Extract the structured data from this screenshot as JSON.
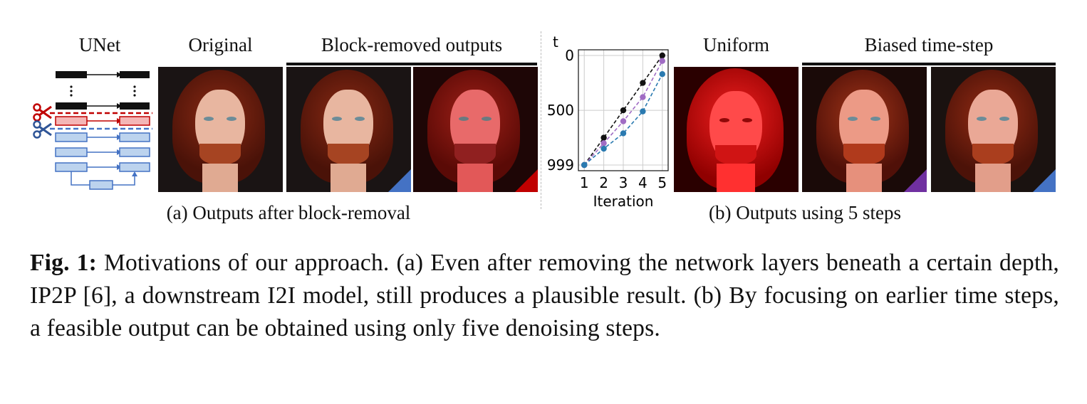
{
  "panel_a": {
    "unet_label": "UNet",
    "original_label": "Original",
    "block_removed_label": "Block-removed outputs",
    "subcaption": "(a) Outputs after block-removal"
  },
  "panel_b": {
    "uniform_label": "Uniform",
    "biased_label": "Biased time-step",
    "subcaption": "(b) Outputs using 5 steps"
  },
  "colors": {
    "black_series": "#111111",
    "purple_series": "#a06cc4",
    "blue_series": "#2a7ab0",
    "corner_blue": "#4472c4",
    "corner_red": "#c00000",
    "corner_purple": "#7030a0",
    "unet_red": "#c00000",
    "unet_blue": "#4472c4"
  },
  "icons": [
    "scissors-icon-red",
    "scissors-icon-blue"
  ],
  "chart_data": {
    "type": "line",
    "ylabel": "t",
    "xlabel": "Iteration",
    "x": [
      1,
      2,
      3,
      4,
      5
    ],
    "x_tick_labels": [
      "1",
      "2",
      "3",
      "4",
      "5"
    ],
    "y_tick_labels": [
      "0",
      "500",
      "999"
    ],
    "ylim": [
      999,
      0
    ],
    "grid": true,
    "series": [
      {
        "color": "black",
        "values": [
          999,
          750,
          500,
          250,
          0
        ]
      },
      {
        "color": "purple",
        "values": [
          999,
          800,
          600,
          380,
          50
        ]
      },
      {
        "color": "blue",
        "values": [
          999,
          850,
          710,
          510,
          170
        ]
      }
    ]
  },
  "caption": {
    "label": "Fig. 1:",
    "text": " Motivations of our approach. (a) Even after removing the network layers beneath a certain depth, IP2P [6], a downstream I2I model, still produces a plausible result. (b) By focusing on earlier time steps, a feasible output can be obtained using only five denoising steps."
  }
}
